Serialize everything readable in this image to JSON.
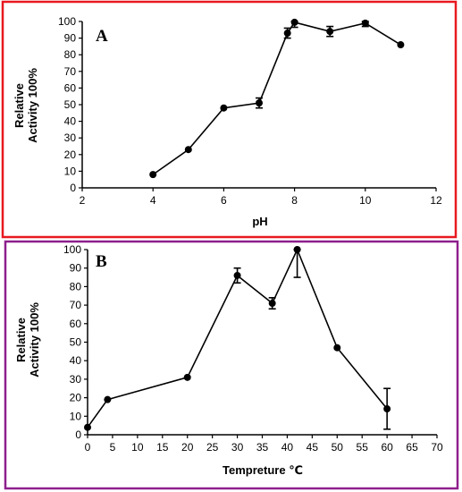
{
  "panel_colors": {
    "A": "#e8191f",
    "B": "#8e1f8c"
  },
  "chart_data": [
    {
      "type": "line",
      "panel_label": "A",
      "xlabel": "pH",
      "ylabel_lines": [
        "Relative",
        "Activity 100%"
      ],
      "xlim": [
        2,
        12
      ],
      "ylim": [
        0,
        100
      ],
      "xticks": [
        2,
        4,
        6,
        8,
        10,
        12
      ],
      "yticks": [
        0,
        10,
        20,
        30,
        40,
        50,
        60,
        70,
        80,
        90,
        100
      ],
      "grid": false,
      "series": [
        {
          "x": [
            4,
            5,
            6,
            7,
            7.8,
            8,
            9,
            10,
            11
          ],
          "y": [
            8,
            23,
            48,
            51,
            93,
            99.5,
            94,
            99,
            86
          ],
          "error": [
            0,
            0,
            0,
            3,
            3,
            3,
            3,
            2,
            0
          ]
        }
      ]
    },
    {
      "type": "line",
      "panel_label": "B",
      "xlabel": "Tempreture ℃",
      "ylabel_lines": [
        "Relative",
        "Activity 100%"
      ],
      "xlim": [
        0,
        70
      ],
      "ylim": [
        0,
        100
      ],
      "xticks": [
        0,
        5,
        10,
        15,
        20,
        25,
        30,
        35,
        40,
        45,
        50,
        55,
        60,
        65,
        70
      ],
      "yticks": [
        0,
        10,
        20,
        30,
        40,
        50,
        60,
        70,
        80,
        90,
        100
      ],
      "grid": false,
      "series": [
        {
          "x": [
            0,
            4,
            20,
            30,
            37,
            42,
            50,
            60
          ],
          "y": [
            4,
            19,
            31,
            86,
            71,
            100,
            47,
            14
          ],
          "error": [
            0,
            0,
            0,
            4,
            3,
            15,
            0,
            11
          ]
        }
      ]
    }
  ]
}
